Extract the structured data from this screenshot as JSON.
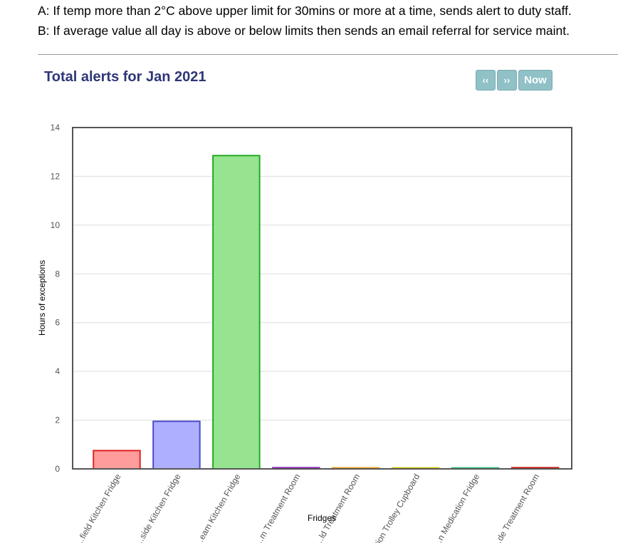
{
  "notes": {
    "a": "A: If temp more than 2°C above upper limit for 30mins or more at a time, sends alert to duty staff.",
    "b": "B: If average value all day is above or below limits then sends an email referral for service maint."
  },
  "controls": {
    "prev_label": "‹‹",
    "next_label": "››",
    "now_label": "Now"
  },
  "chart_data": {
    "type": "bar",
    "title": "Total alerts for Jan 2021",
    "xlabel": "Fridges",
    "ylabel": "Hours of exceptions",
    "ylim": [
      0,
      14
    ],
    "yticks": [
      0,
      2,
      4,
      6,
      8,
      10,
      12,
      14
    ],
    "grid": true,
    "categories": [
      "…field Kitchen Fridge",
      "…side Kitchen Fridge",
      "…eam Kitchen Fridge",
      "…m Treatment Room",
      "…ld Treatment Room",
      "…ation Trolley Cupboard",
      "…n Medication Fridge",
      "…de Treatment Room"
    ],
    "values": [
      0.75,
      1.95,
      12.85,
      0.05,
      0.02,
      0.02,
      0.02,
      0.05
    ],
    "fills": [
      "#ff9c9c",
      "#aeb0ff",
      "#96e490",
      "#c9a8e6",
      "#f5d6a8",
      "#f0f0a0",
      "#a8ecc8",
      "#f0a0a0"
    ],
    "strokes": [
      "#dd2222",
      "#4b4bcc",
      "#22aa22",
      "#8a2bb8",
      "#e8a020",
      "#cccc20",
      "#40c080",
      "#cc2020"
    ]
  }
}
